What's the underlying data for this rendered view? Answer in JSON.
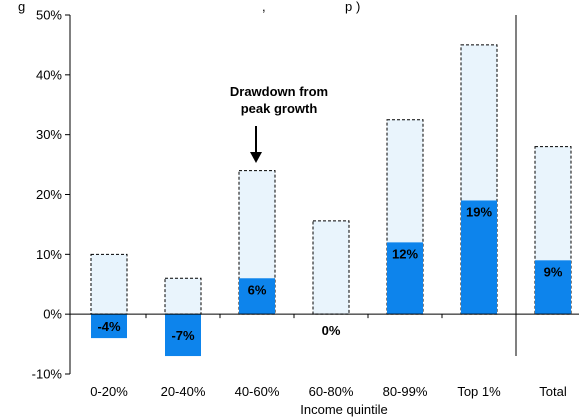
{
  "chart_data": {
    "type": "bar",
    "title": "g",
    "title_suffix": ", ",
    "title_end": "p",
    "title_tail": ")",
    "xlabel": "Income quintile",
    "ylabel": "",
    "ylim": [
      -10,
      50
    ],
    "yticks": [
      -10,
      0,
      10,
      20,
      30,
      40,
      50
    ],
    "ytick_labels": [
      "-10%",
      "0%",
      "10%",
      "20%",
      "30%",
      "40%",
      "50%"
    ],
    "categories": [
      "0-20%",
      "20-40%",
      "40-60%",
      "60-80%",
      "80-99%",
      "Top 1%",
      "Total"
    ],
    "series": [
      {
        "values": [
          -4,
          -7,
          6,
          0,
          12,
          19,
          9
        ],
        "labels": [
          "-4%",
          "-7%",
          "6%",
          "0%",
          "12%",
          "19%",
          "9%"
        ],
        "color": "#0d84ec"
      },
      {
        "values": [
          10,
          6,
          24,
          15.6,
          32.5,
          45,
          28
        ],
        "color": "#e9f4fc",
        "border": "dashed"
      }
    ],
    "annotation": {
      "lines": [
        "Drawdown from",
        "peak growth"
      ],
      "category_index": 2
    },
    "divider_before_category": 6,
    "grid": false,
    "legend": "none"
  }
}
